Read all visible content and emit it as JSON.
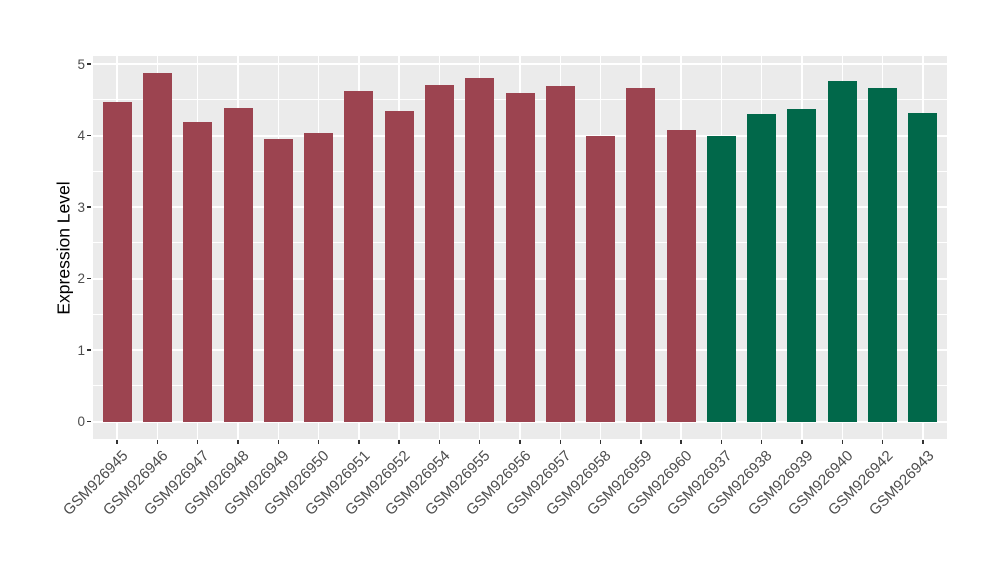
{
  "style": {
    "background": "#FFFFFF",
    "panel_bg": "#EBEBEB",
    "grid_color": "#FFFFFF",
    "tick_mark_color": "#333333",
    "axis_text_color": "#4D4D4D",
    "axis_title_color": "#000000",
    "group_colors": {
      "group_1_maroon": "#9C4450",
      "group_2_green": "#01684A"
    }
  },
  "chart_data": {
    "type": "bar",
    "title": "",
    "xlabel": "",
    "ylabel": "Expression Level",
    "ylim": [
      0,
      5
    ],
    "yticks": [
      0,
      1,
      2,
      3,
      4,
      5
    ],
    "grid": "white major+minor horizontal gridlines and per-category vertical gridlines on gray panel",
    "legend_position": "none",
    "categories": [
      "GSM926945",
      "GSM926946",
      "GSM926947",
      "GSM926948",
      "GSM926949",
      "GSM926950",
      "GSM926951",
      "GSM926952",
      "GSM926954",
      "GSM926955",
      "GSM926956",
      "GSM926957",
      "GSM926958",
      "GSM926959",
      "GSM926960",
      "GSM926937",
      "GSM926938",
      "GSM926939",
      "GSM926940",
      "GSM926942",
      "GSM926943"
    ],
    "values": [
      4.47,
      4.87,
      4.19,
      4.38,
      3.95,
      4.03,
      4.62,
      4.34,
      4.71,
      4.8,
      4.6,
      4.69,
      4.0,
      4.66,
      4.08,
      4.0,
      4.3,
      4.37,
      4.77,
      4.66,
      4.31
    ],
    "bar_colors": [
      "#9C4450",
      "#9C4450",
      "#9C4450",
      "#9C4450",
      "#9C4450",
      "#9C4450",
      "#9C4450",
      "#9C4450",
      "#9C4450",
      "#9C4450",
      "#9C4450",
      "#9C4450",
      "#9C4450",
      "#9C4450",
      "#9C4450",
      "#01684A",
      "#01684A",
      "#01684A",
      "#01684A",
      "#01684A",
      "#01684A"
    ]
  }
}
